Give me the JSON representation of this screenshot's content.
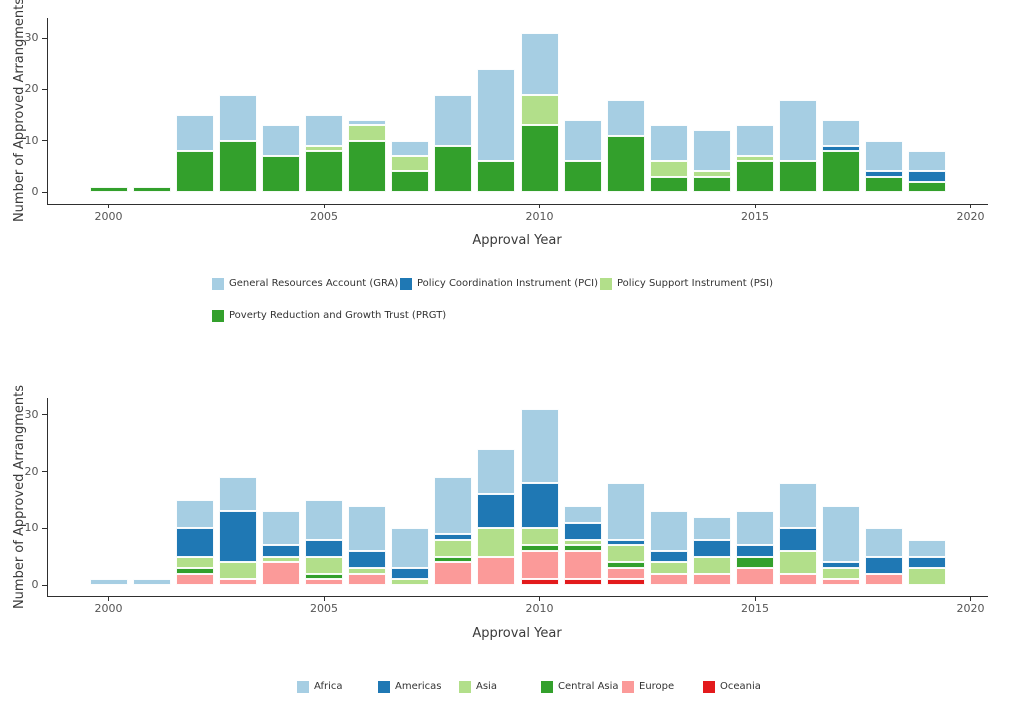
{
  "chart_data": [
    {
      "type": "bar",
      "stacked": true,
      "title": "",
      "xlabel": "Approval Year",
      "ylabel": "Number of Approved Arrangments",
      "x": [
        2000,
        2001,
        2002,
        2003,
        2004,
        2005,
        2006,
        2007,
        2008,
        2009,
        2010,
        2011,
        2012,
        2013,
        2014,
        2015,
        2016,
        2017,
        2018,
        2019
      ],
      "xticks": [
        2000,
        2005,
        2010,
        2015,
        2020
      ],
      "yticks": [
        0,
        10,
        20,
        30
      ],
      "ylim": [
        0,
        31
      ],
      "grid": false,
      "legend_position": "bottom",
      "stack_order_note": "stacked bottom-to-top in reverse legend order (PRGT bottom, GRA top)",
      "series": [
        {
          "name": "General Resources Account (GRA)",
          "color": "#a6cee3",
          "values": [
            0,
            0,
            7,
            9,
            6,
            6,
            1,
            3,
            10,
            18,
            12,
            8,
            7,
            7,
            8,
            6,
            12,
            5,
            6,
            4
          ]
        },
        {
          "name": "Policy Coordination Instrument (PCI)",
          "color": "#1f78b4",
          "values": [
            0,
            0,
            0,
            0,
            0,
            0,
            0,
            0,
            0,
            0,
            0,
            0,
            0,
            0,
            0,
            0,
            0,
            1,
            1,
            2
          ]
        },
        {
          "name": "Policy Support Instrument (PSI)",
          "color": "#b2df8a",
          "values": [
            0,
            0,
            0,
            0,
            0,
            1,
            3,
            3,
            0,
            0,
            6,
            0,
            0,
            3,
            1,
            1,
            0,
            0,
            0,
            0
          ]
        },
        {
          "name": "Poverty Reduction and Growth Trust (PRGT)",
          "color": "#33a02c",
          "values": [
            1,
            1,
            8,
            10,
            7,
            8,
            10,
            4,
            9,
            6,
            13,
            6,
            11,
            3,
            3,
            6,
            6,
            8,
            3,
            2
          ]
        }
      ]
    },
    {
      "type": "bar",
      "stacked": true,
      "title": "",
      "xlabel": "Approval Year",
      "ylabel": "Number of Approved Arrangments",
      "x": [
        2000,
        2001,
        2002,
        2003,
        2004,
        2005,
        2006,
        2007,
        2008,
        2009,
        2010,
        2011,
        2012,
        2013,
        2014,
        2015,
        2016,
        2017,
        2018,
        2019
      ],
      "xticks": [
        2000,
        2005,
        2010,
        2015,
        2020
      ],
      "yticks": [
        0,
        10,
        20,
        30
      ],
      "ylim": [
        0,
        31
      ],
      "grid": false,
      "legend_position": "bottom",
      "stack_order_note": "stacked bottom-to-top in reverse legend order (Oceania bottom, Africa top)",
      "series": [
        {
          "name": "Africa",
          "color": "#a6cee3",
          "values": [
            1,
            1,
            5,
            6,
            6,
            7,
            8,
            7,
            10,
            8,
            13,
            3,
            10,
            7,
            4,
            6,
            8,
            10,
            5,
            3
          ]
        },
        {
          "name": "Americas",
          "color": "#1f78b4",
          "values": [
            0,
            0,
            5,
            9,
            2,
            3,
            3,
            2,
            1,
            6,
            8,
            3,
            1,
            2,
            3,
            2,
            4,
            1,
            3,
            2
          ]
        },
        {
          "name": "Asia",
          "color": "#b2df8a",
          "values": [
            0,
            0,
            2,
            3,
            1,
            3,
            1,
            1,
            3,
            5,
            3,
            1,
            3,
            2,
            3,
            0,
            4,
            2,
            0,
            3
          ]
        },
        {
          "name": "Central Asia",
          "color": "#33a02c",
          "values": [
            0,
            0,
            1,
            0,
            0,
            1,
            0,
            0,
            1,
            0,
            1,
            1,
            1,
            0,
            0,
            2,
            0,
            0,
            0,
            0
          ]
        },
        {
          "name": "Europe",
          "color": "#fb9a99",
          "values": [
            0,
            0,
            2,
            1,
            4,
            1,
            2,
            0,
            4,
            5,
            5,
            5,
            2,
            2,
            2,
            3,
            2,
            1,
            2,
            0
          ]
        },
        {
          "name": "Oceania",
          "color": "#e31a1c",
          "values": [
            0,
            0,
            0,
            0,
            0,
            0,
            0,
            0,
            0,
            0,
            1,
            1,
            1,
            0,
            0,
            0,
            0,
            0,
            0,
            0
          ]
        }
      ]
    }
  ]
}
